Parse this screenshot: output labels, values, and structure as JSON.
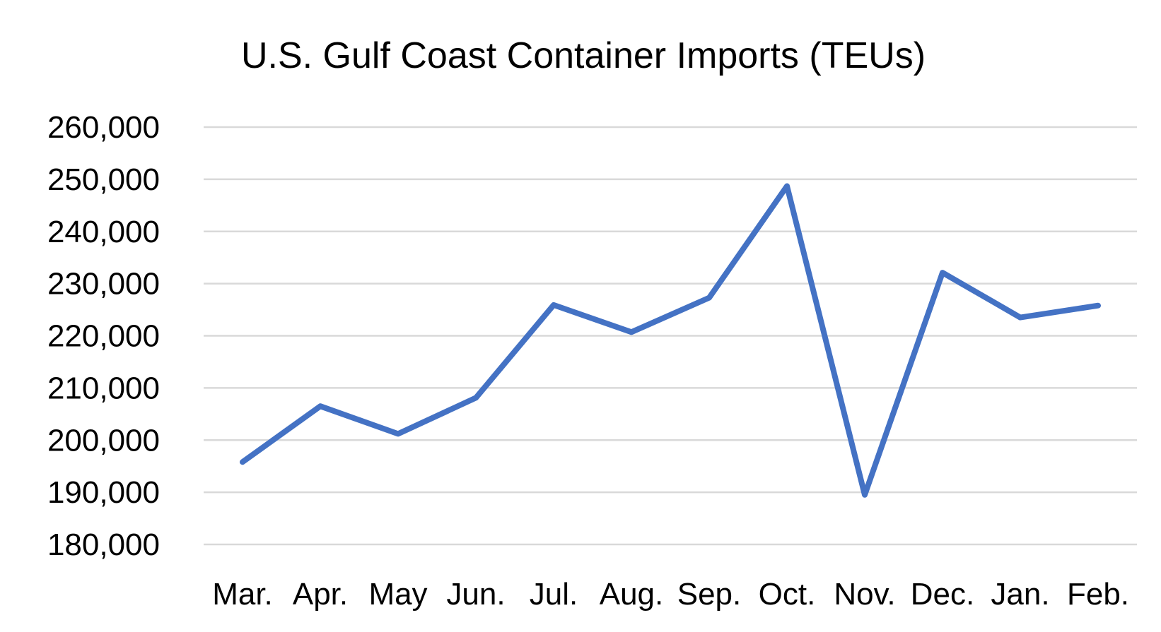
{
  "chart_data": {
    "type": "line",
    "title": "U.S. Gulf Coast Container Imports (TEUs)",
    "xlabel": "",
    "ylabel": "",
    "categories": [
      "Mar.",
      "Apr.",
      "May",
      "Jun.",
      "Jul.",
      "Aug.",
      "Sep.",
      "Oct.",
      "Nov.",
      "Dec.",
      "Jan.",
      "Feb."
    ],
    "series": [
      {
        "color": "#4472c4",
        "values": [
          195800,
          206500,
          201200,
          208100,
          225900,
          220700,
          227300,
          248700,
          189500,
          232100,
          223500,
          225800
        ]
      }
    ],
    "ylim": [
      180000,
      260000
    ],
    "yticks": [
      180000,
      190000,
      200000,
      210000,
      220000,
      230000,
      240000,
      250000,
      260000
    ],
    "ytick_labels": [
      "180,000",
      "190,000",
      "200,000",
      "210,000",
      "220,000",
      "230,000",
      "240,000",
      "250,000",
      "260,000"
    ],
    "grid": true,
    "legend": "none"
  }
}
